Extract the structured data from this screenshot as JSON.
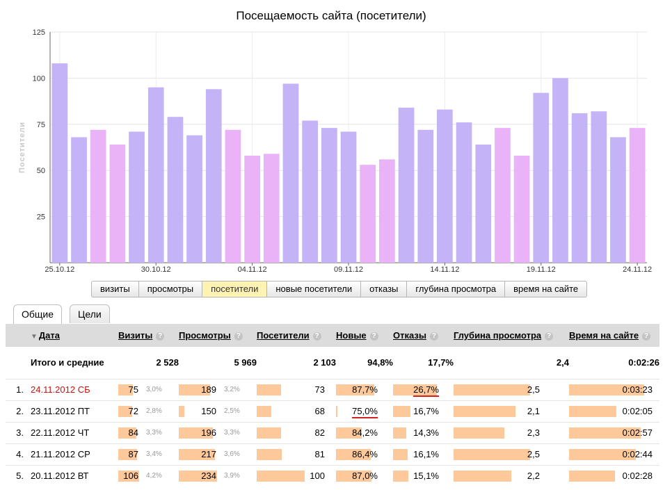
{
  "chart_data": {
    "type": "bar",
    "title": "Посещаемость сайта (посетители)",
    "ylabel": "Посетители",
    "xlabel": "",
    "ylim": [
      0,
      125
    ],
    "yticks": [
      25,
      50,
      75,
      100,
      125
    ],
    "grid": true,
    "x_tick_labels": [
      "25.10.12",
      "30.10.12",
      "04.11.12",
      "09.11.12",
      "14.11.12",
      "19.11.12",
      "24.11.12"
    ],
    "categories": [
      "25.10.12",
      "26.10.12",
      "27.10.12",
      "28.10.12",
      "29.10.12",
      "30.10.12",
      "31.10.12",
      "01.11.12",
      "02.11.12",
      "03.11.12",
      "04.11.12",
      "05.11.12",
      "06.11.12",
      "07.11.12",
      "08.11.12",
      "09.11.12",
      "10.11.12",
      "11.11.12",
      "12.11.12",
      "13.11.12",
      "14.11.12",
      "15.11.12",
      "16.11.12",
      "17.11.12",
      "18.11.12",
      "19.11.12",
      "20.11.12",
      "21.11.12",
      "22.11.12",
      "23.11.12",
      "24.11.12"
    ],
    "values": [
      108,
      68,
      72,
      64,
      71,
      95,
      79,
      69,
      94,
      72,
      58,
      59,
      97,
      77,
      73,
      71,
      53,
      56,
      84,
      72,
      83,
      76,
      64,
      73,
      58,
      92,
      100,
      81,
      82,
      68,
      73
    ],
    "weekend": [
      false,
      false,
      true,
      true,
      false,
      false,
      false,
      false,
      false,
      true,
      true,
      true,
      false,
      false,
      false,
      false,
      true,
      true,
      false,
      false,
      false,
      false,
      false,
      true,
      true,
      false,
      false,
      false,
      false,
      false,
      true
    ],
    "colors": {
      "weekday": "#c4b3f7",
      "weekend": "#eab3f7"
    }
  },
  "metric_switcher": {
    "items": [
      "визиты",
      "просмотры",
      "посетители",
      "новые посетители",
      "отказы",
      "глубина просмотра",
      "время на сайте"
    ],
    "active_index": 2
  },
  "tabs": {
    "items": [
      "Общие",
      "Цели"
    ],
    "active_index": 0
  },
  "table": {
    "columns": {
      "date": "Дата",
      "visits": "Визиты",
      "views": "Просмотры",
      "visitors": "Посетители",
      "new": "Новые",
      "bounces": "Отказы",
      "depth": "Глубина просмотра",
      "time": "Время на сайте"
    },
    "help_symbol": "?",
    "sort_symbol": "▼",
    "total": {
      "label": "Итого и средние",
      "visits": "2 528",
      "views": "5 969",
      "visitors": "2 103",
      "new": "94,8%",
      "bounces": "17,7%",
      "depth": "2,4",
      "time": "0:02:26"
    },
    "rows": [
      {
        "n": "1.",
        "date": "24.11.2012 СБ",
        "weekend": true,
        "visits": "75",
        "visits_pct": "3,0%",
        "visits_f": 0.71,
        "views": "189",
        "views_pct": "3,2%",
        "views_f": 0.81,
        "visitors": "73",
        "visitors_f": 0.36,
        "new": "87,7%",
        "new_f": 0.88,
        "bounces": "26,7%",
        "bounces_f": 0.94,
        "depth": "2,5",
        "depth_f": 0.88,
        "time": "0:03:23",
        "time_f": 0.9
      },
      {
        "n": "2.",
        "date": "23.11.2012 ПТ",
        "weekend": false,
        "visits": "72",
        "visits_pct": "2,8%",
        "visits_f": 0.68,
        "views": "150",
        "views_pct": "2,5%",
        "views_f": 0.14,
        "visitors": "68",
        "visitors_f": 0.22,
        "new": "75,0%",
        "new_f": 0.03,
        "bounces": "16,7%",
        "bounces_f": 0.38,
        "depth": "2,1",
        "depth_f": 0.71,
        "time": "0:02:05",
        "time_f": 0.57
      },
      {
        "n": "3.",
        "date": "22.11.2012 ЧТ",
        "weekend": false,
        "visits": "84",
        "visits_pct": "3,3%",
        "visits_f": 0.87,
        "views": "196",
        "views_pct": "3,3%",
        "views_f": 0.87,
        "visitors": "82",
        "visitors_f": 0.36,
        "new": "84,2%",
        "new_f": 0.59,
        "bounces": "14,3%",
        "bounces_f": 0.29,
        "depth": "2,3",
        "depth_f": 0.58,
        "time": "0:02:57",
        "time_f": 0.86
      },
      {
        "n": "4.",
        "date": "21.11.2012 СР",
        "weekend": false,
        "visits": "87",
        "visits_pct": "3,4%",
        "visits_f": 0.91,
        "views": "217",
        "views_pct": "3,6%",
        "views_f": 0.93,
        "visitors": "81",
        "visitors_f": 0.37,
        "new": "86,4%",
        "new_f": 0.8,
        "bounces": "16,1%",
        "bounces_f": 0.31,
        "depth": "2,5",
        "depth_f": 0.88,
        "time": "0:02:44",
        "time_f": 0.8
      },
      {
        "n": "5.",
        "date": "20.11.2012 ВТ",
        "weekend": false,
        "visits": "106",
        "visits_pct": "4,2%",
        "visits_f": 0.99,
        "views": "234",
        "views_pct": "3,9%",
        "views_f": 0.99,
        "visitors": "100",
        "visitors_f": 0.72,
        "new": "87,0%",
        "new_f": 0.83,
        "bounces": "15,1%",
        "bounces_f": 0.33,
        "depth": "2,2",
        "depth_f": 0.66,
        "time": "0:02:28",
        "time_f": 0.55
      }
    ]
  }
}
